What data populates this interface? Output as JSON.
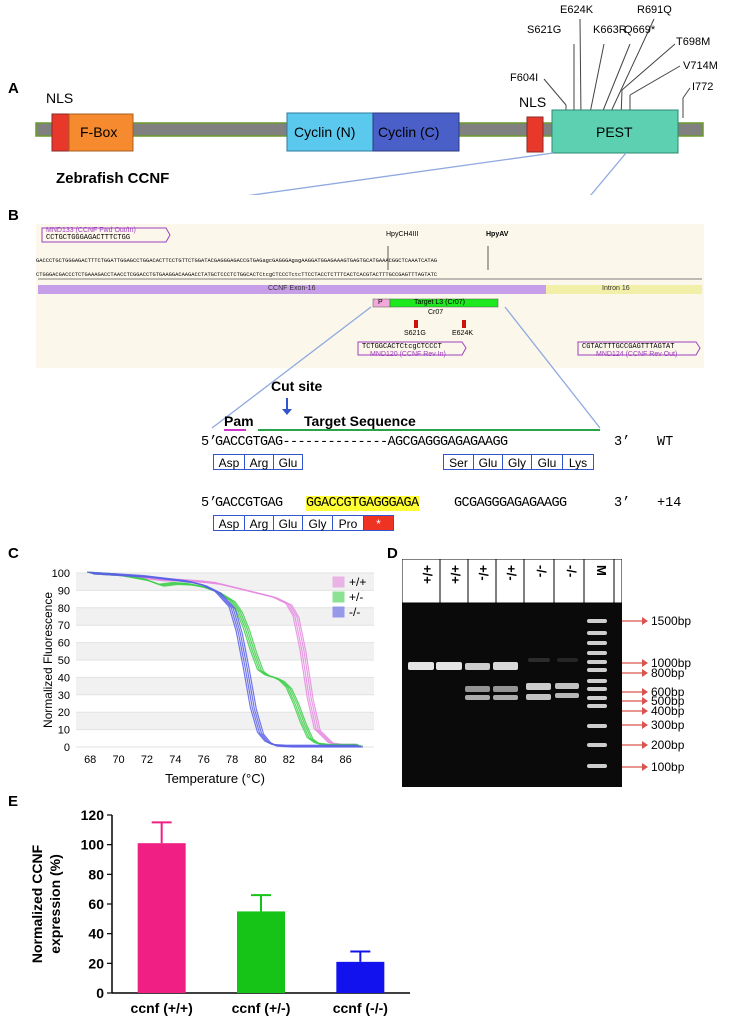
{
  "panelA": {
    "letter": "A",
    "title": "Zebrafish CCNF",
    "domains": {
      "nls1": "NLS",
      "fbox": "F-Box",
      "cyclinN": "Cyclin (N)",
      "cyclinC": "Cyclin (C)",
      "nls2": "NLS",
      "pest": "PEST"
    },
    "mutations": [
      "F604I",
      "S621G",
      "E624K",
      "K663R",
      "Q669*",
      "R691Q",
      "T698M",
      "V714M",
      "I772"
    ],
    "colors": {
      "bar": "#808080",
      "nls": "#e8382a",
      "fbox": "#f58a2e",
      "cyclinN": "#5bc8ee",
      "cyclinC": "#4a5fc7",
      "pest": "#5cd0b0"
    }
  },
  "panelB": {
    "letter": "B",
    "primer_fwd_name": "MND133 (CCNF Fwd Out/In)",
    "primer_fwd_seq": "CCTGCTGGGAGACTTTCTGG",
    "enzyme1": "HpyCH4III",
    "enzyme2": "HpyAV",
    "seq_top": "GACCCTGCTGGGAGACTTTCTGGATTGGAGCCTGGACACTTCCTGTTCTGGATACGAGGGAGACCGTGAGagcGAGGGAgagAAGGATGGAGAAAGTGAGTGCATGAAACGGCTCAAATCATAG",
    "seq_bottom": "CTGGGACGACCCTCTGAAAGACCTAACCTCGGACCTGTGAAGGACAAGACCTATGCTCCCTCTGGCACTCtcgCTCCCTctcTTCCTACCTCTTTCACTCACGTACTTTGCCGAGTTTAGTATC",
    "exon_label": "CCNF Exon-16",
    "intron_label": "Intron 16",
    "p_label": "P",
    "target_label": "Target L3 (Cr07)",
    "cr07": "Cr07",
    "mut1": "S621G",
    "mut2": "E624K",
    "primer_rev_in_seq": "TCTGGCACTCtcgCTCCCT",
    "primer_rev_in_name": "MND120 (CCNF Rev In)",
    "primer_rev_out_seq": "CGTACTTTGCCGAGTTTAGTAT",
    "primer_rev_out_name": "MND124 (CCNF Rev Out)",
    "cut_site": "Cut site",
    "pam": "Pam",
    "target_sequence": "Target Sequence",
    "wt_line": {
      "prefix": "5’",
      "seq": "GACCGTGAG--------------AGCGAGGGAGAGAAGG",
      "suffix": "3’",
      "tag": "WT",
      "aa_left": [
        "Asp",
        "Arg",
        "Glu"
      ],
      "aa_right": [
        "Ser",
        "Glu",
        "Gly",
        "Glu",
        "Lys"
      ]
    },
    "mut_line": {
      "prefix": "5’",
      "seq_a": "GACCGTGAG",
      "seq_ins": "GGACCGTGAGGGAGA",
      "seq_b": "GCGAGGGAGAGAAGG",
      "suffix": "3’",
      "tag": "+14",
      "aa": [
        "Asp",
        "Arg",
        "Glu",
        "Gly",
        "Pro"
      ],
      "stop": "*"
    }
  },
  "panelC": {
    "letter": "C",
    "chart_data": {
      "type": "line",
      "xlabel": "Temperature (°C)",
      "ylabel": "Normalized Fluorescence",
      "xlim": [
        67,
        88
      ],
      "ylim": [
        0,
        100
      ],
      "xticks": [
        68,
        70,
        72,
        74,
        76,
        78,
        80,
        82,
        84,
        86
      ],
      "yticks": [
        0,
        10,
        20,
        30,
        40,
        50,
        60,
        70,
        80,
        90,
        100
      ],
      "legend_position": "top-right",
      "series": [
        {
          "name": "+/+",
          "color": "#e58be0",
          "x": [
            68,
            70,
            72,
            73,
            74,
            75,
            76,
            77,
            78,
            79,
            80,
            81,
            82,
            82.5,
            83,
            83.5,
            84,
            85,
            86,
            87
          ],
          "y": [
            100,
            99,
            97,
            96,
            96,
            95.5,
            95,
            94,
            92,
            90,
            88,
            86,
            82,
            75,
            55,
            28,
            10,
            2,
            1,
            1
          ]
        },
        {
          "name": "+/-",
          "color": "#3fcf4a",
          "x": [
            68,
            70,
            72,
            73,
            74,
            75,
            76,
            77,
            78,
            78.5,
            79,
            79.5,
            80,
            80.5,
            81,
            81.5,
            82,
            82.5,
            83,
            83.5,
            84,
            85,
            86,
            87
          ],
          "y": [
            100,
            99,
            96,
            93,
            94,
            93.5,
            92,
            89,
            84,
            78,
            68,
            55,
            44,
            41,
            40,
            38,
            34,
            25,
            14,
            5,
            2,
            1,
            1,
            1
          ]
        },
        {
          "name": "-/-",
          "color": "#5a60e6",
          "x": [
            68,
            70,
            72,
            73,
            74,
            75,
            76,
            77,
            78,
            78.5,
            79,
            79.5,
            80,
            80.5,
            81,
            82,
            83,
            84,
            86,
            87
          ],
          "y": [
            100,
            99,
            98,
            97,
            96,
            95,
            93,
            89,
            80,
            66,
            45,
            22,
            8,
            3,
            1,
            0.5,
            0.5,
            0.5,
            0.5,
            0.5
          ]
        }
      ]
    }
  },
  "panelD": {
    "letter": "D",
    "lanes": [
      "+/+",
      "+/+",
      "+/-",
      "+/-",
      "-/-",
      "-/-",
      "M"
    ],
    "ladder": [
      "1500bp",
      "1000bp",
      "800bp",
      "600bp",
      "500bp",
      "400bp",
      "300bp",
      "200bp",
      "100bp"
    ],
    "arrow_color": "#d9534f"
  },
  "panelE": {
    "letter": "E",
    "chart_data": {
      "type": "bar",
      "categories": [
        "ccnf (+/+)",
        "ccnf (+/-)",
        "ccnf (-/-)"
      ],
      "values": [
        101,
        55,
        21
      ],
      "errors": [
        14,
        11,
        7
      ],
      "colors": [
        "#f01f84",
        "#15c417",
        "#1212ee"
      ],
      "ylabel": "Normalized CCNF expression (%)",
      "ylim": [
        0,
        120
      ],
      "yticks": [
        0,
        20,
        40,
        60,
        80,
        100,
        120
      ]
    }
  }
}
